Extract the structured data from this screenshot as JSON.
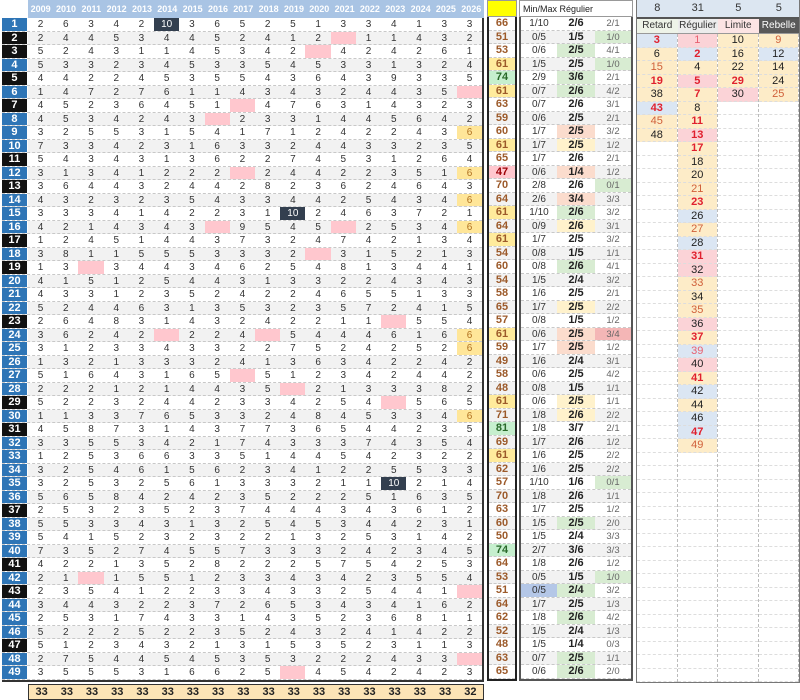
{
  "grid": {
    "years": [
      "2009",
      "2010",
      "2011",
      "2012",
      "2013",
      "2014",
      "2015",
      "2016",
      "2017",
      "2018",
      "2019",
      "2020",
      "2021",
      "2022",
      "2023",
      "2024",
      "2025",
      "2026"
    ],
    "rows": [
      [
        2,
        6,
        3,
        4,
        2,
        10,
        3,
        6,
        5,
        2,
        5,
        1,
        3,
        3,
        4,
        1,
        3,
        3
      ],
      [
        2,
        4,
        4,
        5,
        3,
        4,
        4,
        5,
        2,
        4,
        1,
        2,
        null,
        1,
        1,
        4,
        3,
        2
      ],
      [
        5,
        2,
        4,
        3,
        1,
        1,
        4,
        5,
        3,
        4,
        2,
        null,
        4,
        2,
        4,
        2,
        6,
        1
      ],
      [
        5,
        3,
        3,
        2,
        3,
        4,
        5,
        3,
        3,
        5,
        4,
        5,
        3,
        3,
        1,
        3,
        2,
        4
      ],
      [
        4,
        4,
        2,
        2,
        4,
        5,
        3,
        5,
        5,
        4,
        3,
        6,
        4,
        3,
        9,
        3,
        3,
        5
      ],
      [
        1,
        4,
        7,
        2,
        7,
        6,
        1,
        1,
        4,
        3,
        4,
        3,
        2,
        4,
        4,
        3,
        5,
        null
      ],
      [
        4,
        5,
        2,
        3,
        6,
        4,
        5,
        1,
        null,
        4,
        7,
        6,
        3,
        1,
        4,
        3,
        2,
        3
      ],
      [
        4,
        5,
        3,
        4,
        2,
        4,
        3,
        null,
        2,
        3,
        3,
        1,
        4,
        4,
        5,
        6,
        4,
        2
      ],
      [
        3,
        2,
        5,
        5,
        3,
        1,
        5,
        4,
        1,
        7,
        1,
        2,
        4,
        2,
        2,
        4,
        3,
        6
      ],
      [
        7,
        3,
        3,
        4,
        2,
        3,
        1,
        6,
        3,
        3,
        2,
        4,
        4,
        3,
        3,
        2,
        3,
        5
      ],
      [
        5,
        4,
        3,
        4,
        3,
        1,
        3,
        6,
        2,
        2,
        7,
        4,
        5,
        3,
        1,
        2,
        6,
        4
      ],
      [
        3,
        1,
        3,
        4,
        1,
        2,
        2,
        2,
        null,
        2,
        4,
        4,
        2,
        2,
        3,
        5,
        1,
        6
      ],
      [
        3,
        6,
        4,
        4,
        3,
        2,
        4,
        4,
        2,
        8,
        2,
        3,
        6,
        2,
        4,
        6,
        4,
        3
      ],
      [
        4,
        3,
        2,
        3,
        2,
        3,
        5,
        4,
        3,
        3,
        4,
        4,
        2,
        5,
        4,
        3,
        4,
        6
      ],
      [
        3,
        3,
        3,
        4,
        1,
        4,
        2,
        2,
        3,
        1,
        10,
        2,
        4,
        6,
        3,
        7,
        2,
        1
      ],
      [
        4,
        2,
        1,
        4,
        3,
        4,
        3,
        null,
        9,
        5,
        4,
        5,
        null,
        2,
        5,
        3,
        4,
        6
      ],
      [
        1,
        2,
        4,
        5,
        1,
        4,
        4,
        3,
        7,
        3,
        2,
        4,
        7,
        4,
        2,
        1,
        3,
        4
      ],
      [
        3,
        8,
        1,
        1,
        5,
        5,
        5,
        3,
        3,
        3,
        2,
        null,
        3,
        1,
        5,
        2,
        1,
        3
      ],
      [
        1,
        3,
        null,
        3,
        4,
        4,
        3,
        4,
        6,
        2,
        5,
        4,
        8,
        1,
        3,
        4,
        4,
        1
      ],
      [
        4,
        1,
        5,
        1,
        2,
        5,
        4,
        4,
        3,
        1,
        3,
        3,
        2,
        2,
        4,
        3,
        4,
        3
      ],
      [
        4,
        3,
        3,
        1,
        2,
        3,
        5,
        2,
        4,
        2,
        2,
        4,
        6,
        5,
        5,
        1,
        3,
        3
      ],
      [
        5,
        2,
        4,
        4,
        6,
        3,
        1,
        3,
        5,
        3,
        2,
        3,
        5,
        7,
        2,
        4,
        1,
        5
      ],
      [
        2,
        6,
        4,
        8,
        3,
        1,
        4,
        3,
        2,
        4,
        2,
        2,
        1,
        1,
        null,
        5,
        5,
        4
      ],
      [
        3,
        6,
        2,
        4,
        2,
        null,
        2,
        2,
        4,
        null,
        5,
        4,
        4,
        4,
        6,
        1,
        6,
        6
      ],
      [
        3,
        1,
        2,
        3,
        3,
        4,
        3,
        3,
        2,
        2,
        7,
        5,
        2,
        4,
        2,
        5,
        2,
        6
      ],
      [
        1,
        3,
        2,
        1,
        3,
        3,
        3,
        2,
        4,
        1,
        3,
        6,
        3,
        4,
        2,
        2,
        4,
        2
      ],
      [
        5,
        1,
        6,
        4,
        3,
        1,
        6,
        5,
        null,
        5,
        1,
        2,
        3,
        4,
        2,
        4,
        4,
        2
      ],
      [
        2,
        2,
        2,
        1,
        2,
        1,
        4,
        4,
        3,
        5,
        null,
        2,
        1,
        3,
        3,
        3,
        8,
        2
      ],
      [
        5,
        2,
        2,
        3,
        2,
        4,
        4,
        2,
        3,
        3,
        4,
        2,
        5,
        4,
        null,
        5,
        6,
        5
      ],
      [
        1,
        1,
        3,
        3,
        7,
        6,
        5,
        3,
        3,
        2,
        4,
        8,
        4,
        5,
        3,
        3,
        4,
        6
      ],
      [
        4,
        5,
        8,
        7,
        3,
        1,
        4,
        3,
        7,
        7,
        3,
        6,
        5,
        4,
        4,
        2,
        3,
        5
      ],
      [
        3,
        3,
        5,
        5,
        3,
        4,
        2,
        1,
        7,
        4,
        3,
        3,
        3,
        7,
        4,
        3,
        5,
        4
      ],
      [
        1,
        2,
        5,
        3,
        6,
        6,
        3,
        3,
        5,
        1,
        4,
        4,
        5,
        4,
        2,
        3,
        2,
        2
      ],
      [
        3,
        2,
        5,
        4,
        6,
        1,
        5,
        6,
        2,
        3,
        4,
        1,
        2,
        2,
        5,
        5,
        3,
        3
      ],
      [
        3,
        2,
        5,
        3,
        2,
        5,
        6,
        1,
        3,
        3,
        3,
        2,
        1,
        1,
        10,
        2,
        1,
        4
      ],
      [
        5,
        6,
        5,
        8,
        4,
        2,
        4,
        2,
        3,
        5,
        2,
        2,
        2,
        5,
        1,
        6,
        3,
        5
      ],
      [
        2,
        5,
        3,
        2,
        3,
        5,
        2,
        3,
        7,
        4,
        4,
        4,
        3,
        4,
        3,
        6,
        1,
        2
      ],
      [
        5,
        5,
        3,
        3,
        4,
        3,
        1,
        3,
        2,
        5,
        4,
        5,
        3,
        4,
        4,
        2,
        3,
        1
      ],
      [
        5,
        4,
        1,
        5,
        2,
        3,
        2,
        3,
        2,
        2,
        1,
        3,
        2,
        5,
        3,
        1,
        4,
        2
      ],
      [
        7,
        3,
        5,
        2,
        7,
        4,
        5,
        5,
        7,
        3,
        3,
        3,
        2,
        4,
        2,
        3,
        4,
        5
      ],
      [
        4,
        2,
        2,
        1,
        3,
        5,
        2,
        8,
        2,
        2,
        2,
        5,
        7,
        5,
        4,
        2,
        5,
        3
      ],
      [
        2,
        1,
        null,
        1,
        5,
        5,
        1,
        2,
        3,
        3,
        4,
        3,
        4,
        2,
        3,
        5,
        5,
        4
      ],
      [
        2,
        3,
        5,
        4,
        1,
        2,
        2,
        3,
        3,
        4,
        3,
        3,
        2,
        5,
        4,
        4,
        1,
        null
      ],
      [
        3,
        4,
        4,
        3,
        2,
        2,
        3,
        7,
        2,
        6,
        5,
        3,
        4,
        3,
        4,
        1,
        6,
        2
      ],
      [
        2,
        5,
        3,
        1,
        7,
        4,
        3,
        3,
        1,
        4,
        3,
        5,
        2,
        3,
        6,
        8,
        1,
        1
      ],
      [
        5,
        2,
        2,
        2,
        5,
        2,
        2,
        3,
        5,
        2,
        4,
        3,
        2,
        4,
        1,
        4,
        2,
        2
      ],
      [
        5,
        1,
        2,
        3,
        4,
        3,
        2,
        1,
        3,
        1,
        5,
        3,
        5,
        2,
        3,
        1,
        1,
        3
      ],
      [
        2,
        7,
        5,
        4,
        4,
        5,
        4,
        5,
        3,
        5,
        3,
        2,
        2,
        2,
        4,
        3,
        3,
        null
      ],
      [
        3,
        5,
        5,
        5,
        3,
        1,
        6,
        6,
        2,
        5,
        null,
        4,
        5,
        4,
        2,
        4,
        2,
        3
      ]
    ],
    "totals": [
      33,
      33,
      33,
      33,
      33,
      33,
      33,
      33,
      33,
      33,
      33,
      33,
      33,
      33,
      33,
      33,
      33,
      32
    ]
  },
  "stats": {
    "header": "Min/Max Régulier",
    "sums": [
      66,
      51,
      53,
      61,
      74,
      61,
      63,
      59,
      60,
      61,
      65,
      47,
      70,
      64,
      61,
      64,
      61,
      54,
      60,
      54,
      58,
      65,
      57,
      61,
      59,
      49,
      58,
      48,
      61,
      71,
      81,
      69,
      61,
      62,
      57,
      70,
      63,
      60,
      50,
      74,
      64,
      53,
      51,
      64,
      62,
      52,
      48,
      63,
      65
    ],
    "minmax": [
      "1/10",
      "0/5",
      "0/6",
      "1/5",
      "2/9",
      "0/7",
      "0/7",
      "0/6",
      "1/7",
      "1/7",
      "1/7",
      "0/6",
      "2/8",
      "2/6",
      "1/10",
      "0/9",
      "1/7",
      "0/8",
      "0/8",
      "1/5",
      "1/6",
      "1/7",
      "0/8",
      "0/6",
      "1/7",
      "1/6",
      "0/6",
      "0/8",
      "0/6",
      "1/8",
      "1/8",
      "1/7",
      "1/6",
      "1/6",
      "1/10",
      "1/8",
      "1/7",
      "1/5",
      "1/5",
      "2/7",
      "1/8",
      "0/5",
      "0/5",
      "1/7",
      "1/8",
      "1/5",
      "1/5",
      "0/7",
      "0/6"
    ],
    "regulier": [
      "2/6",
      "1/5",
      "2/5",
      "2/5",
      "3/6",
      "2/6",
      "2/6",
      "2/5",
      "2/5",
      "2/5",
      "2/6",
      "1/4",
      "2/6",
      "3/4",
      "2/6",
      "2/6",
      "2/5",
      "1/5",
      "2/6",
      "2/4",
      "2/5",
      "2/5",
      "1/5",
      "2/5",
      "2/5",
      "2/4",
      "2/5",
      "1/5",
      "2/5",
      "2/6",
      "3/7",
      "2/6",
      "2/5",
      "2/5",
      "1/6",
      "2/6",
      "2/5",
      "2/5",
      "2/4",
      "3/6",
      "2/6",
      "1/5",
      "2/4",
      "2/5",
      "2/6",
      "2/4",
      "1/4",
      "2/5",
      "2/6"
    ],
    "ratio": [
      "2/1",
      "1/0",
      "4/1",
      "1/0",
      "2/1",
      "4/2",
      "3/1",
      "2/1",
      "3/2",
      "1/2",
      "2/1",
      "1/2",
      "0/1",
      "3/3",
      "3/2",
      "3/1",
      "3/2",
      "1/1",
      "4/1",
      "3/2",
      "2/1",
      "2/2",
      "1/2",
      "3/4",
      "1/2",
      "3/1",
      "4/2",
      "1/1",
      "1/1",
      "2/2",
      "2/1",
      "1/2",
      "2/2",
      "2/2",
      "0/1",
      "1/1",
      "1/2",
      "2/0",
      "3/3",
      "3/3",
      "1/2",
      "1/0",
      "3/2",
      "1/3",
      "4/2",
      "1/3",
      "0/3",
      "1/1",
      "2/0"
    ],
    "regulier_bg": [
      "",
      "",
      "g",
      "",
      "g",
      "g",
      "",
      "",
      "o",
      "y",
      "",
      "o",
      "",
      "o",
      "g",
      "y",
      "",
      "",
      "g",
      "",
      "",
      "y",
      "",
      "o",
      "o",
      "",
      "",
      "",
      "y",
      "y",
      "",
      "",
      "",
      "",
      "",
      "",
      "",
      "g",
      "",
      "",
      "",
      "",
      "g",
      "",
      "g",
      "",
      "",
      "g",
      "g"
    ],
    "ratio_bg": [
      "",
      "g",
      "",
      "g",
      "",
      "",
      "",
      "",
      "",
      "",
      "",
      "",
      "g",
      "",
      "",
      "",
      "",
      "",
      "",
      "",
      "",
      "",
      "",
      "r",
      "",
      "",
      "",
      "",
      "",
      "",
      "",
      "",
      "",
      "",
      "g",
      "",
      "",
      "",
      "",
      "",
      "",
      "g",
      "",
      "",
      "",
      "",
      "",
      "",
      ""
    ],
    "minmax_bg": [
      "",
      "",
      "",
      "",
      "",
      "",
      "",
      "",
      "",
      "",
      "",
      "",
      "",
      "",
      "",
      "",
      "",
      "",
      "",
      "",
      "",
      "",
      "",
      "",
      "",
      "",
      "",
      "",
      "",
      "",
      "",
      "",
      "",
      "",
      "",
      "",
      "",
      "",
      "",
      "",
      "",
      "",
      "b",
      "",
      "",
      "",
      "",
      "",
      ""
    ],
    "colors": {
      "sum_high": "#c6efce",
      "sum_mid": "#ffeb9c",
      "sum_low": "#ffc7ce",
      "highlight": "#ffff00"
    }
  },
  "panel": {
    "counts": [
      8,
      31,
      5,
      5
    ],
    "headers": [
      "Retard",
      "Régulier",
      "Limite",
      "Rebelle"
    ],
    "columns": [
      [
        {
          "v": 3,
          "b": "b",
          "f": "r"
        },
        {
          "v": 6,
          "b": "y",
          "f": "k"
        },
        {
          "v": 15,
          "b": "y",
          "f": "o"
        },
        {
          "v": 19,
          "b": "y",
          "f": "r"
        },
        {
          "v": 38,
          "b": "y",
          "f": "k"
        },
        {
          "v": 43,
          "b": "b",
          "f": "r"
        },
        {
          "v": 45,
          "b": "y",
          "f": "o"
        },
        {
          "v": 48,
          "b": "y",
          "f": "k"
        }
      ],
      [
        {
          "v": 1,
          "b": "p",
          "f": "l"
        },
        {
          "v": 2,
          "b": "b",
          "f": "r"
        },
        {
          "v": 4,
          "b": "y",
          "f": "k"
        },
        {
          "v": 5,
          "b": "p",
          "f": "r"
        },
        {
          "v": 7,
          "b": "y",
          "f": "r"
        },
        {
          "v": 8,
          "b": "y",
          "f": "k"
        },
        {
          "v": 11,
          "b": "y",
          "f": "r"
        },
        {
          "v": 13,
          "b": "p",
          "f": "r"
        },
        {
          "v": 17,
          "b": "y",
          "f": "r"
        },
        {
          "v": 18,
          "b": "y",
          "f": "k"
        },
        {
          "v": 20,
          "b": "y",
          "f": "k"
        },
        {
          "v": 21,
          "b": "y",
          "f": "o"
        },
        {
          "v": 23,
          "b": "y",
          "f": "r"
        },
        {
          "v": 26,
          "b": "b",
          "f": "k"
        },
        {
          "v": 27,
          "b": "y",
          "f": "o"
        },
        {
          "v": 28,
          "b": "b",
          "f": "k"
        },
        {
          "v": 31,
          "b": "p",
          "f": "r"
        },
        {
          "v": 32,
          "b": "p",
          "f": "k"
        },
        {
          "v": 33,
          "b": "y",
          "f": "o"
        },
        {
          "v": 34,
          "b": "y",
          "f": "k"
        },
        {
          "v": 35,
          "b": "y",
          "f": "o"
        },
        {
          "v": 36,
          "b": "p",
          "f": "k"
        },
        {
          "v": 37,
          "b": "y",
          "f": "r"
        },
        {
          "v": 39,
          "b": "b",
          "f": "l"
        },
        {
          "v": 40,
          "b": "p",
          "f": "k"
        },
        {
          "v": 41,
          "b": "y",
          "f": "r"
        },
        {
          "v": 42,
          "b": "b",
          "f": "k"
        },
        {
          "v": 44,
          "b": "y",
          "f": "k"
        },
        {
          "v": 46,
          "b": "b",
          "f": "k"
        },
        {
          "v": 47,
          "b": "b",
          "f": "r"
        },
        {
          "v": 49,
          "b": "y",
          "f": "o"
        }
      ],
      [
        {
          "v": 10,
          "b": "y",
          "f": "k"
        },
        {
          "v": 16,
          "b": "y",
          "f": "k"
        },
        {
          "v": 22,
          "b": "y",
          "f": "k"
        },
        {
          "v": 29,
          "b": "y",
          "f": "r"
        },
        {
          "v": 30,
          "b": "p",
          "f": "k"
        }
      ],
      [
        {
          "v": 9,
          "b": "y",
          "f": "o"
        },
        {
          "v": 12,
          "b": "b",
          "f": "k"
        },
        {
          "v": 14,
          "b": "y",
          "f": "k"
        },
        {
          "v": 24,
          "b": "y",
          "f": "k"
        },
        {
          "v": 25,
          "b": "y",
          "f": "o"
        }
      ]
    ]
  }
}
